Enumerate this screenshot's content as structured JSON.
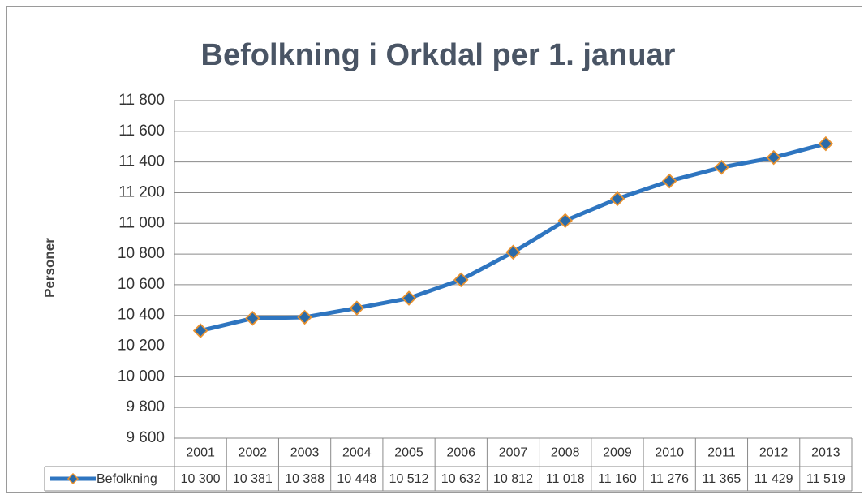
{
  "chart_data": {
    "type": "line",
    "title": "Befolkning i Orkdal per 1. januar",
    "y_label": "Personer",
    "categories": [
      "2001",
      "2002",
      "2003",
      "2004",
      "2005",
      "2006",
      "2007",
      "2008",
      "2009",
      "2010",
      "2011",
      "2012",
      "2013"
    ],
    "series": [
      {
        "name": "Befolkning",
        "color": "#2e75c0",
        "marker_color": "#2a6aa8",
        "marker_edge_color": "#e8912e",
        "values": [
          10300,
          10381,
          10388,
          10448,
          10512,
          10632,
          10812,
          11018,
          11160,
          11276,
          11365,
          11429,
          11519
        ],
        "value_labels": [
          "10 300",
          "10 381",
          "10 388",
          "10 448",
          "10 512",
          "10 632",
          "10 812",
          "11 018",
          "11 160",
          "11 276",
          "11 365",
          "11 429",
          "11 519"
        ]
      }
    ],
    "ylim": [
      9600,
      11800
    ],
    "yticks": [
      {
        "value": 9600,
        "label": "9 600"
      },
      {
        "value": 9800,
        "label": "9 800"
      },
      {
        "value": 10000,
        "label": "10 000"
      },
      {
        "value": 10200,
        "label": "10 200"
      },
      {
        "value": 10400,
        "label": "10 400"
      },
      {
        "value": 10600,
        "label": "10 600"
      },
      {
        "value": 10800,
        "label": "10 800"
      },
      {
        "value": 11000,
        "label": "11 000"
      },
      {
        "value": 11200,
        "label": "11 200"
      },
      {
        "value": 11400,
        "label": "11 400"
      },
      {
        "value": 11600,
        "label": "11 600"
      },
      {
        "value": 11800,
        "label": "11 800"
      }
    ],
    "grid": true,
    "data_table": true
  }
}
